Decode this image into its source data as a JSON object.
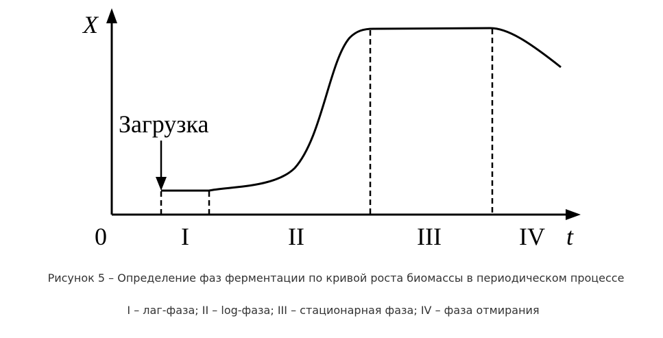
{
  "axes": {
    "y_label": "X",
    "x_label": "t",
    "origin": "0"
  },
  "annotation": "Загрузка",
  "phases": [
    "I",
    "II",
    "III",
    "IV"
  ],
  "caption": {
    "title": "Рисунок 5 – Определение фаз ферментации по кривой роста биомассы в периодическом процессе",
    "legend": "I – лаг-фаза; II – log-фаза; III – стационарная фаза; IV – фаза отмирания"
  }
}
